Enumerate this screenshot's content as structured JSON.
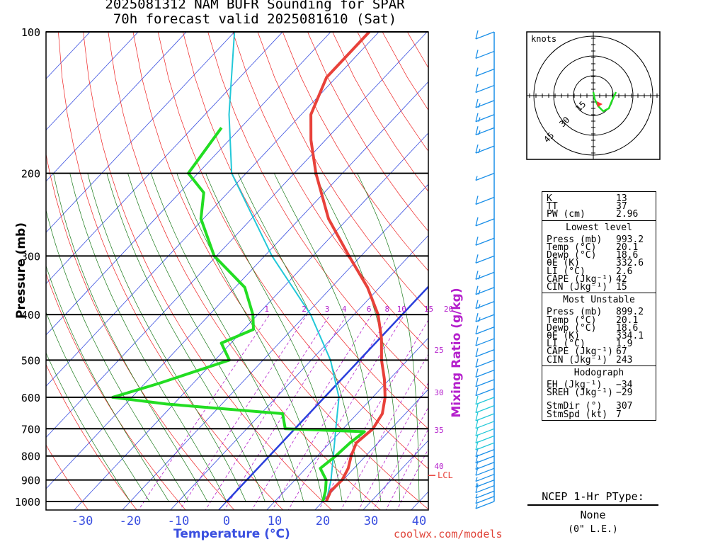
{
  "title": {
    "line1": "2025081312 NAM BUFR Sounding for SPAR",
    "line2": "70h forecast valid 2025081610 (Sat)"
  },
  "axes": {
    "ylabel": "Pressure (mb)",
    "xlabel": "Temperature (°C)",
    "mixing_ratio_label": "Mixing Ratio (g/kg)",
    "pressure_ticks": [
      "100",
      "200",
      "300",
      "400",
      "500",
      "600",
      "700",
      "800",
      "900",
      "1000"
    ],
    "temp_ticks": [
      "-30",
      "-20",
      "-10",
      "0",
      "10",
      "20",
      "30",
      "40"
    ],
    "mr_top": [
      "1",
      "2",
      "3",
      "4",
      "6",
      "8",
      "10",
      "15",
      "20"
    ],
    "mr_side": [
      "25",
      "30",
      "35",
      "40"
    ],
    "lcl_label": "LCL"
  },
  "colors": {
    "temp": "#e8413a",
    "dew": "#22dd22",
    "parcel": "#22c8d8",
    "isotherm": "#3a4fe0",
    "dry": "#e22",
    "moist": "#1a7a1a",
    "mixing": "#b41fcc",
    "wind": "#1a8fe8"
  },
  "chart_data": {
    "type": "skew-t",
    "temperature_c": [
      [
        1000,
        20.7
      ],
      [
        950,
        19.6
      ],
      [
        900,
        19.8
      ],
      [
        850,
        18.8
      ],
      [
        800,
        17.0
      ],
      [
        750,
        15.5
      ],
      [
        700,
        16.2
      ],
      [
        650,
        15.2
      ],
      [
        600,
        12.6
      ],
      [
        550,
        9.0
      ],
      [
        500,
        4.6
      ],
      [
        450,
        0.4
      ],
      [
        400,
        -5.0
      ],
      [
        350,
        -12.5
      ],
      [
        300,
        -22.5
      ],
      [
        250,
        -34.0
      ],
      [
        200,
        -45.5
      ],
      [
        170,
        -53
      ],
      [
        150,
        -58
      ],
      [
        125,
        -62
      ],
      [
        100,
        -62
      ]
    ],
    "dewpoint_c": [
      [
        1000,
        20.0
      ],
      [
        950,
        18.5
      ],
      [
        900,
        16.5
      ],
      [
        850,
        13.0
      ],
      [
        800,
        13.8
      ],
      [
        750,
        14.2
      ],
      [
        710,
        15.0
      ],
      [
        700,
        -2.0
      ],
      [
        650,
        -5.5
      ],
      [
        620,
        -31.5
      ],
      [
        600,
        -44.0
      ],
      [
        560,
        -37.0
      ],
      [
        500,
        -27.0
      ],
      [
        460,
        -32.0
      ],
      [
        430,
        -28.0
      ],
      [
        400,
        -31.0
      ],
      [
        350,
        -38.0
      ],
      [
        300,
        -50.5
      ],
      [
        250,
        -60.5
      ],
      [
        220,
        -65.0
      ],
      [
        200,
        -72.0
      ],
      [
        160,
        -74.0
      ]
    ],
    "parcel_c": [
      [
        1000,
        20.7
      ],
      [
        900,
        17.5
      ],
      [
        800,
        13.3
      ],
      [
        700,
        8.5
      ],
      [
        600,
        3.0
      ],
      [
        500,
        -6.0
      ],
      [
        400,
        -19.0
      ],
      [
        300,
        -38.5
      ],
      [
        200,
        -63.0
      ],
      [
        150,
        -75.0
      ],
      [
        100,
        -90.0
      ]
    ],
    "lcl_pressure_mb": 880,
    "wind_kt": [
      [
        1000,
        4
      ],
      [
        975,
        6
      ],
      [
        950,
        6
      ],
      [
        925,
        8
      ],
      [
        900,
        7
      ],
      [
        875,
        6
      ],
      [
        850,
        8
      ],
      [
        825,
        10
      ],
      [
        800,
        10
      ],
      [
        775,
        12
      ],
      [
        750,
        12
      ],
      [
        725,
        10
      ],
      [
        700,
        10
      ],
      [
        675,
        10
      ],
      [
        650,
        10
      ],
      [
        625,
        10
      ],
      [
        600,
        11
      ],
      [
        575,
        11
      ],
      [
        550,
        10
      ],
      [
        525,
        10
      ],
      [
        500,
        10
      ],
      [
        475,
        12
      ],
      [
        450,
        12
      ],
      [
        425,
        12
      ],
      [
        400,
        13
      ],
      [
        375,
        14
      ],
      [
        350,
        14
      ],
      [
        325,
        14
      ],
      [
        300,
        12
      ],
      [
        275,
        10
      ],
      [
        250,
        10
      ],
      [
        225,
        8
      ],
      [
        200,
        4
      ],
      [
        175,
        14
      ],
      [
        160,
        15
      ],
      [
        150,
        16
      ],
      [
        140,
        15
      ],
      [
        130,
        12
      ],
      [
        120,
        10
      ],
      [
        110,
        10
      ],
      [
        100,
        12
      ]
    ],
    "ylim": [
      1000,
      100
    ],
    "xlim": [
      -40,
      40
    ]
  },
  "hodograph": {
    "label": "knots",
    "rings": [
      "15",
      "30",
      "45"
    ]
  },
  "stats": {
    "indices": [
      [
        "K",
        "13"
      ],
      [
        "TT",
        "37"
      ],
      [
        "PW (cm)",
        "2.96"
      ]
    ],
    "lowest_header": "Lowest level",
    "lowest": [
      [
        "Press (mb)",
        "993.2"
      ],
      [
        "Temp (°C)",
        "20.1"
      ],
      [
        "Dewp (°C)",
        "18.6"
      ],
      [
        "θE (K)",
        "332.6"
      ],
      [
        "LI (°C)",
        "2.6"
      ],
      [
        "CAPE (Jkg⁻¹)",
        "42"
      ],
      [
        "CIN (Jkg⁻¹)",
        "15"
      ]
    ],
    "mu_header": "Most Unstable",
    "mu": [
      [
        "Press (mb)",
        "899.2"
      ],
      [
        "Temp (°C)",
        "20.1"
      ],
      [
        "Dewp (°C)",
        "18.6"
      ],
      [
        "θE (K)",
        "334.1"
      ],
      [
        "LI (°C)",
        "1.9"
      ],
      [
        "CAPE (Jkg⁻¹)",
        "67"
      ],
      [
        "CIN (Jkg⁻¹)",
        "243"
      ]
    ],
    "hodo_header": "Hodograph",
    "hodo": [
      [
        "EH (Jkg⁻¹)",
        "−34"
      ],
      [
        "SREH (Jkg⁻¹)",
        "−29"
      ]
    ],
    "storm": [
      [
        "StmDir (°)",
        "307"
      ],
      [
        "StmSpd (kt)",
        "7"
      ]
    ]
  },
  "ptype": {
    "title": "NCEP 1-Hr PType:",
    "value": "None",
    "le": "(0\" L.E.)"
  },
  "credit": "coolwx.com/models"
}
